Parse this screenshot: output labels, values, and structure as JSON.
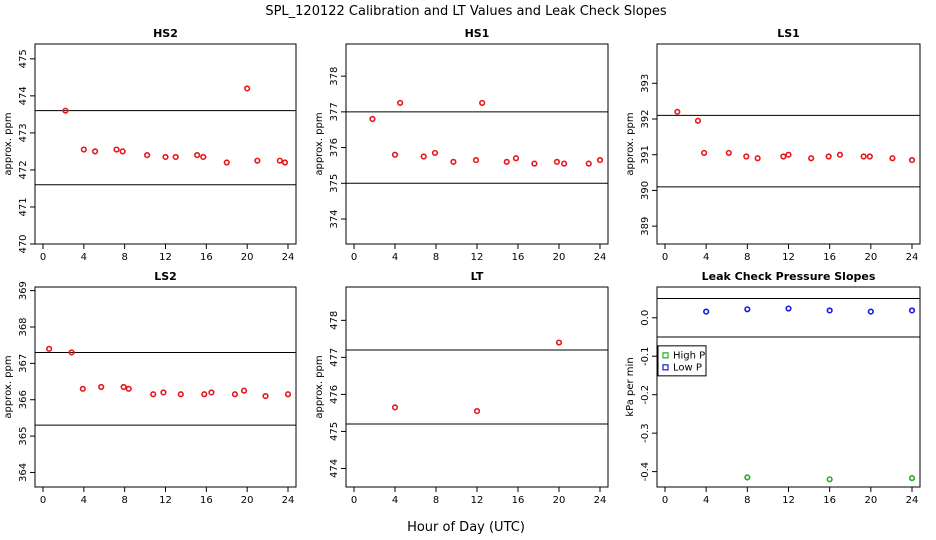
{
  "figure": {
    "title": "SPL_120122  Calibration and LT Values and Leak Check Slopes",
    "xlabel": "Hour of Day (UTC)"
  },
  "chart_data": [
    {
      "id": "hs2",
      "type": "scatter",
      "title": "HS2",
      "ylabel": "approx. ppm",
      "xlim": [
        0,
        24
      ],
      "xticks": [
        0,
        4,
        8,
        12,
        16,
        20,
        24
      ],
      "ylim": [
        470,
        475.4
      ],
      "yticks": [
        470,
        471,
        472,
        473,
        474,
        475
      ],
      "hlines": [
        473.6,
        471.6
      ],
      "series": [
        {
          "name": "HS2",
          "color": "#e8161c",
          "marker": "circle",
          "x": [
            2.2,
            4.0,
            5.1,
            7.2,
            7.8,
            10.2,
            12.0,
            13.0,
            15.1,
            15.7,
            18.0,
            20.0,
            21.0,
            23.2,
            23.7
          ],
          "y": [
            473.6,
            472.55,
            472.5,
            472.55,
            472.5,
            472.4,
            472.35,
            472.35,
            472.4,
            472.35,
            472.2,
            474.2,
            472.25,
            472.25,
            472.2
          ]
        }
      ]
    },
    {
      "id": "hs1",
      "type": "scatter",
      "title": "HS1",
      "ylabel": "approx. ppm",
      "xlim": [
        0,
        24
      ],
      "xticks": [
        0,
        4,
        8,
        12,
        16,
        20,
        24
      ],
      "ylim": [
        373.3,
        378.9
      ],
      "yticks": [
        374,
        375,
        376,
        377,
        378
      ],
      "hlines": [
        377.0,
        375.0
      ],
      "series": [
        {
          "name": "HS1",
          "color": "#e8161c",
          "marker": "circle",
          "x": [
            1.8,
            4.0,
            4.5,
            6.8,
            7.9,
            9.7,
            11.9,
            12.5,
            14.9,
            15.8,
            17.6,
            19.8,
            20.5,
            22.9,
            24.0
          ],
          "y": [
            376.8,
            375.8,
            377.25,
            375.75,
            375.85,
            375.6,
            375.65,
            377.25,
            375.6,
            375.7,
            375.55,
            375.6,
            375.55,
            375.55,
            375.65
          ]
        }
      ]
    },
    {
      "id": "ls1",
      "type": "scatter",
      "title": "LS1",
      "ylabel": "approx. ppm",
      "xlim": [
        0,
        24
      ],
      "xticks": [
        0,
        4,
        8,
        12,
        16,
        20,
        24
      ],
      "ylim": [
        388.5,
        394.1
      ],
      "yticks": [
        389,
        390,
        391,
        392,
        393
      ],
      "hlines": [
        392.1,
        390.1
      ],
      "series": [
        {
          "name": "LS1",
          "color": "#e8161c",
          "marker": "circle",
          "x": [
            1.2,
            3.2,
            3.8,
            6.2,
            7.9,
            9.0,
            11.5,
            12.0,
            14.2,
            15.9,
            17.0,
            19.3,
            19.9,
            22.1,
            24.0
          ],
          "y": [
            392.2,
            391.95,
            391.05,
            391.05,
            390.95,
            390.9,
            390.95,
            391.0,
            390.9,
            390.95,
            391.0,
            390.95,
            390.95,
            390.9,
            390.85
          ]
        }
      ]
    },
    {
      "id": "ls2",
      "type": "scatter",
      "title": "LS2",
      "ylabel": "approx. ppm",
      "xlim": [
        0,
        24
      ],
      "xticks": [
        0,
        4,
        8,
        12,
        16,
        20,
        24
      ],
      "ylim": [
        363.6,
        369.1
      ],
      "yticks": [
        364,
        365,
        366,
        367,
        368,
        369
      ],
      "hlines": [
        367.3,
        365.3
      ],
      "series": [
        {
          "name": "LS2",
          "color": "#e8161c",
          "marker": "circle",
          "x": [
            0.6,
            2.8,
            3.9,
            5.7,
            7.9,
            8.4,
            10.8,
            11.8,
            13.5,
            15.8,
            16.5,
            18.8,
            19.7,
            21.8,
            24.0
          ],
          "y": [
            367.4,
            367.3,
            366.3,
            366.35,
            366.35,
            366.3,
            366.15,
            366.2,
            366.15,
            366.15,
            366.2,
            366.15,
            366.25,
            366.1,
            366.15
          ]
        }
      ]
    },
    {
      "id": "lt",
      "type": "scatter",
      "title": "LT",
      "ylabel": "approx. ppm",
      "xlim": [
        0,
        24
      ],
      "xticks": [
        0,
        4,
        8,
        12,
        16,
        20,
        24
      ],
      "ylim": [
        473.5,
        478.9
      ],
      "yticks": [
        474,
        475,
        476,
        477,
        478
      ],
      "hlines": [
        477.2,
        475.2
      ],
      "series": [
        {
          "name": "LT",
          "color": "#e8161c",
          "marker": "circle",
          "x": [
            4.0,
            12.0,
            20.0
          ],
          "y": [
            475.65,
            475.55,
            477.4
          ]
        }
      ]
    },
    {
      "id": "leak",
      "type": "scatter",
      "title": "Leak Check Pressure Slopes",
      "ylabel": "kPa per min",
      "xlim": [
        0,
        24
      ],
      "xticks": [
        0,
        4,
        8,
        12,
        16,
        20,
        24
      ],
      "ylim": [
        -0.44,
        0.08
      ],
      "yticks": [
        0.0,
        -0.1,
        -0.2,
        -0.3,
        -0.4
      ],
      "ytick_labels": [
        "0.0",
        "-0.1",
        "-0.2",
        "-0.3",
        "-0.4"
      ],
      "hlines": [
        0.05,
        -0.05
      ],
      "legend": {
        "position": "center-left"
      },
      "series": [
        {
          "name": "High P",
          "color": "#22b022",
          "marker": "circle",
          "x": [
            8.0,
            16.0,
            24.0
          ],
          "y": [
            -0.415,
            -0.42,
            -0.417
          ]
        },
        {
          "name": "Low P",
          "color": "#1a1adc",
          "marker": "circle",
          "x": [
            4.0,
            8.0,
            12.0,
            16.0,
            20.0,
            24.0
          ],
          "y": [
            0.016,
            0.022,
            0.024,
            0.019,
            0.016,
            0.019
          ]
        }
      ]
    }
  ]
}
